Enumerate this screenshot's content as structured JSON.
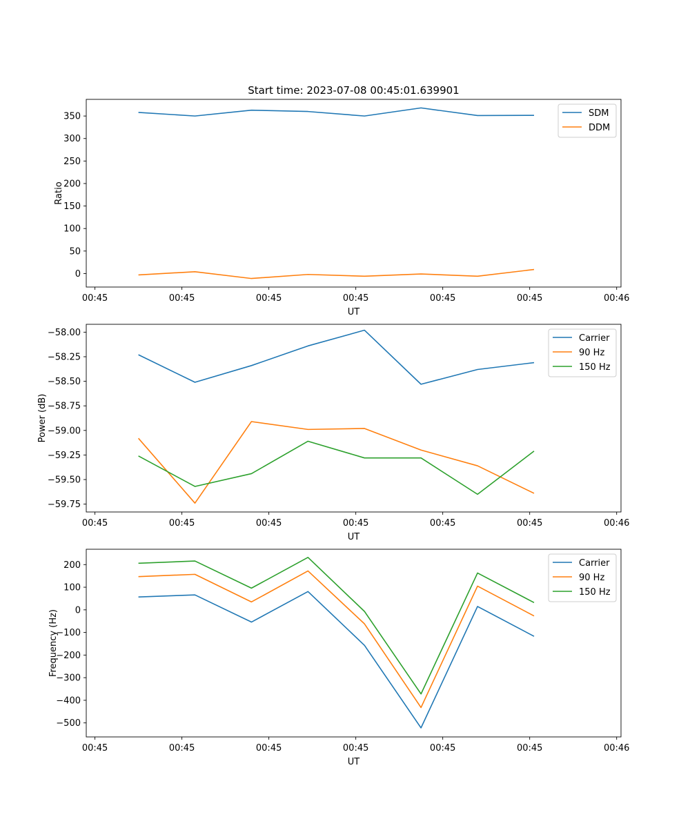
{
  "figure_title": "Start time: 2023-07-08 00:45:01.639901",
  "chart_data": [
    {
      "type": "line",
      "title": "Start time: 2023-07-08 00:45:01.639901",
      "xlabel": "UT",
      "ylabel": "Ratio",
      "x_tick_labels": [
        "00:45",
        "00:45",
        "00:45",
        "00:45",
        "00:45",
        "00:45",
        "00:46"
      ],
      "x_ticks": [
        0,
        2,
        4,
        6,
        8,
        10,
        12
      ],
      "xlim": [
        -0.2,
        12.1
      ],
      "x": [
        1,
        2.3,
        3.6,
        4.9,
        6.2,
        7.5,
        8.8,
        10.1
      ],
      "ylim": [
        -30,
        387
      ],
      "y_ticks": [
        0,
        50,
        100,
        150,
        200,
        250,
        300,
        350
      ],
      "y_tick_labels": [
        "0",
        "50",
        "100",
        "150",
        "200",
        "250",
        "300",
        "350"
      ],
      "legend_position": "top-right",
      "series": [
        {
          "name": "SDM",
          "color": "#1f77b4",
          "values": [
            358,
            350,
            363,
            360,
            350,
            368,
            351,
            351.5
          ]
        },
        {
          "name": "DDM",
          "color": "#ff7f0e",
          "values": [
            -3,
            4,
            -11,
            -2,
            -6,
            -1,
            -6,
            9
          ]
        }
      ]
    },
    {
      "type": "line",
      "xlabel": "UT",
      "ylabel": "Power (dB)",
      "x_tick_labels": [
        "00:45",
        "00:45",
        "00:45",
        "00:45",
        "00:45",
        "00:45",
        "00:46"
      ],
      "x_ticks": [
        0,
        2,
        4,
        6,
        8,
        10,
        12
      ],
      "xlim": [
        -0.2,
        12.1
      ],
      "x": [
        1,
        2.3,
        3.6,
        4.9,
        6.2,
        7.5,
        8.8,
        10.1
      ],
      "ylim": [
        -59.83,
        -57.92
      ],
      "y_ticks": [
        -58.0,
        -58.25,
        -58.5,
        -58.75,
        -59.0,
        -59.25,
        -59.5,
        -59.75
      ],
      "y_tick_labels": [
        "−58.00",
        "−58.25",
        "−58.50",
        "−58.75",
        "−59.00",
        "−59.25",
        "−59.50",
        "−59.75"
      ],
      "legend_position": "top-right",
      "series": [
        {
          "name": "Carrier",
          "color": "#1f77b4",
          "values": [
            -58.23,
            -58.51,
            -58.34,
            -58.14,
            -57.98,
            -58.53,
            -58.38,
            -58.31
          ]
        },
        {
          "name": "90 Hz",
          "color": "#ff7f0e",
          "values": [
            -59.08,
            -59.74,
            -58.91,
            -58.99,
            -58.98,
            -59.2,
            -59.36,
            -59.64
          ]
        },
        {
          "name": "150 Hz",
          "color": "#2ca02c",
          "values": [
            -59.26,
            -59.57,
            -59.44,
            -59.11,
            -59.28,
            -59.28,
            -59.65,
            -59.21
          ]
        }
      ]
    },
    {
      "type": "line",
      "xlabel": "UT",
      "ylabel": "Frequency (Hz)",
      "x_tick_labels": [
        "00:45",
        "00:45",
        "00:45",
        "00:45",
        "00:45",
        "00:45",
        "00:46"
      ],
      "x_ticks": [
        0,
        2,
        4,
        6,
        8,
        10,
        12
      ],
      "xlim": [
        -0.2,
        12.1
      ],
      "x": [
        1,
        2.3,
        3.6,
        4.9,
        6.2,
        7.5,
        8.8,
        10.1
      ],
      "ylim": [
        -562,
        268
      ],
      "y_ticks": [
        200,
        100,
        0,
        -100,
        -200,
        -300,
        -400,
        -500
      ],
      "y_tick_labels": [
        "200",
        "100",
        "0",
        "−100",
        "−200",
        "−300",
        "−400",
        "−500"
      ],
      "legend_position": "top-right",
      "series": [
        {
          "name": "Carrier",
          "color": "#1f77b4",
          "values": [
            57,
            66,
            -54,
            81,
            -157,
            -522,
            15,
            -117
          ]
        },
        {
          "name": "90 Hz",
          "color": "#ff7f0e",
          "values": [
            147,
            157,
            35,
            172,
            -62,
            -432,
            105,
            -27
          ]
        },
        {
          "name": "150 Hz",
          "color": "#2ca02c",
          "values": [
            206,
            216,
            96,
            232,
            -7,
            -372,
            163,
            32
          ]
        }
      ]
    }
  ]
}
